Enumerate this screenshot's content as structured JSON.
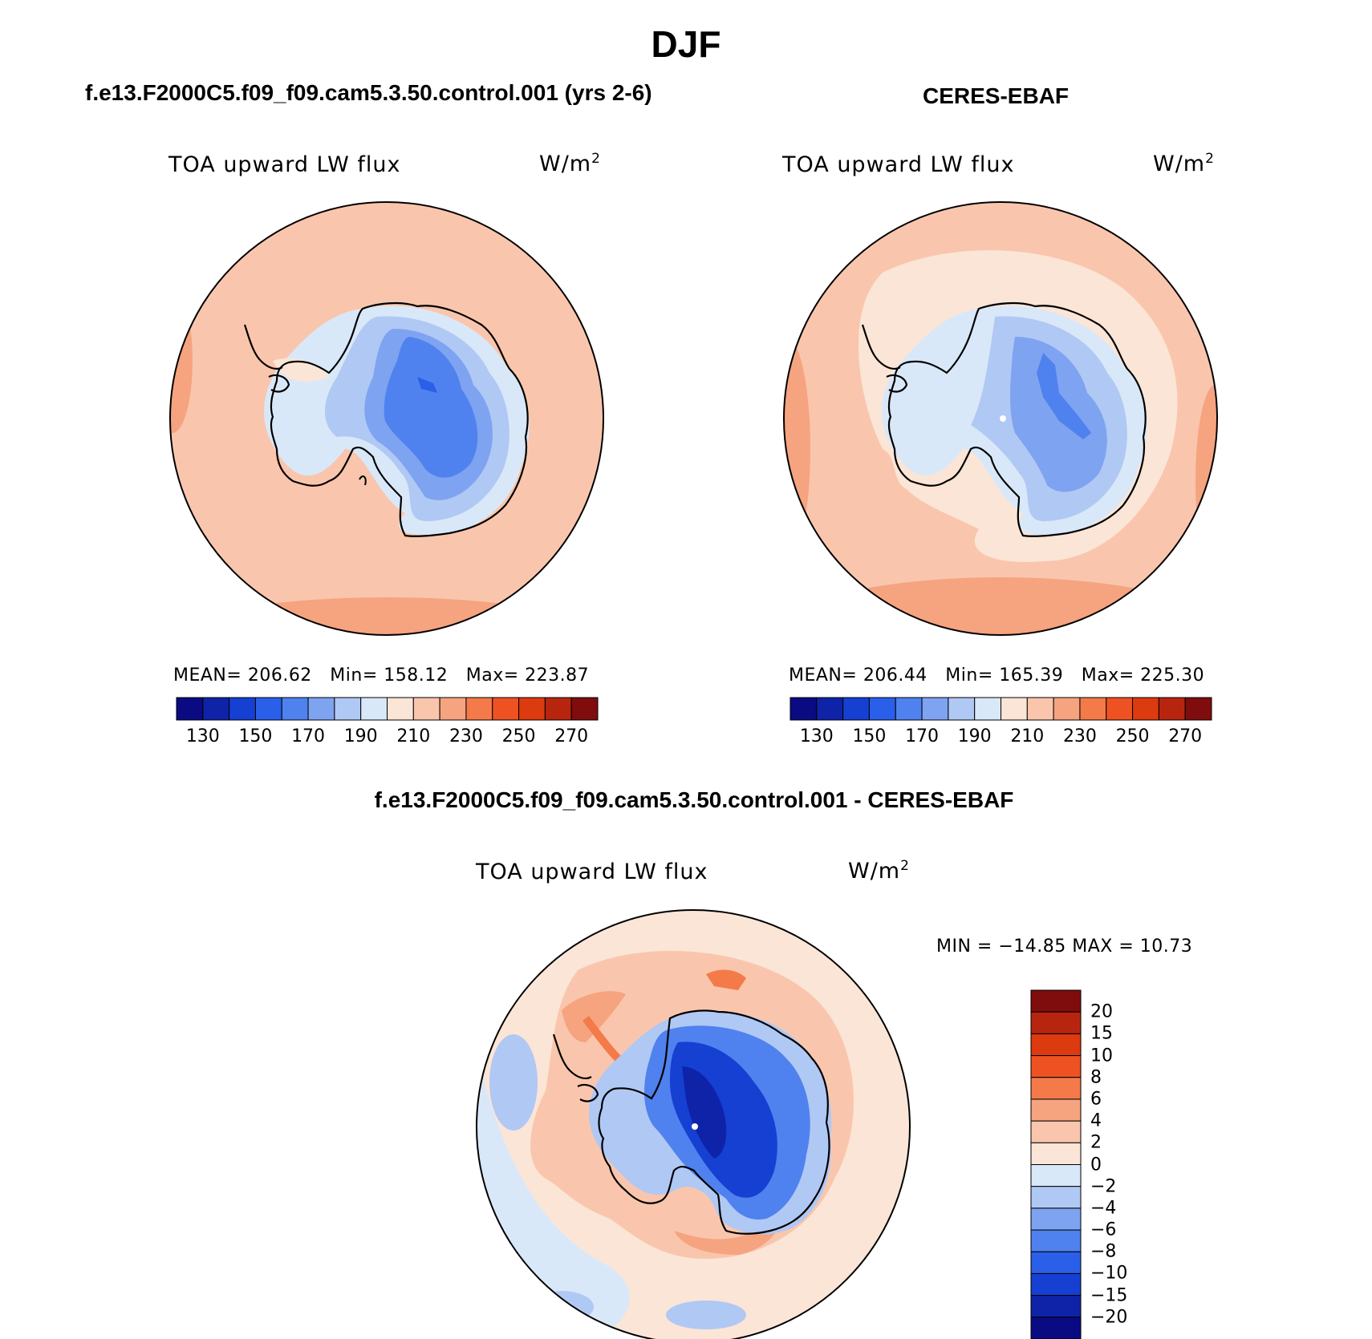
{
  "page_title": "DJF",
  "panels": [
    {
      "id": "model",
      "title": "f.e13.F2000C5.f09_f09.cam5.3.50.control.001 (yrs 2-6)",
      "variable": "TOA upward LW flux",
      "units_base": "W/m",
      "units_exp": "2",
      "stats": {
        "mean_label": "MEAN=",
        "mean": "206.62",
        "min_label": "Min=",
        "min": "158.12",
        "max_label": "Max=",
        "max": "223.87"
      }
    },
    {
      "id": "obs",
      "title": "CERES-EBAF",
      "variable": "TOA upward LW flux",
      "units_base": "W/m",
      "units_exp": "2",
      "stats": {
        "mean_label": "MEAN=",
        "mean": "206.44",
        "min_label": "Min=",
        "min": "165.39",
        "max_label": "Max=",
        "max": "225.30"
      }
    },
    {
      "id": "diff",
      "title": "f.e13.F2000C5.f09_f09.cam5.3.50.control.001 - CERES-EBAF",
      "variable": "TOA upward LW flux",
      "units_base": "W/m",
      "units_exp": "2",
      "stats_line": "MIN = −14.85 MAX =  10.73"
    }
  ],
  "abs_colorbar": {
    "colors": [
      "#0a0a82",
      "#0f23a8",
      "#1540d2",
      "#2a5fea",
      "#4f82ee",
      "#7ea3f0",
      "#b0c8f4",
      "#d9e8f8",
      "#fbe5d6",
      "#f9c6ad",
      "#f6a380",
      "#f47a4a",
      "#ee5222",
      "#dc3a0f",
      "#b8250f",
      "#7f0d0d"
    ],
    "tick_labels": [
      "130",
      "150",
      "170",
      "190",
      "210",
      "230",
      "250",
      "270"
    ]
  },
  "diff_colorbar": {
    "colors": [
      "#0a0a82",
      "#0f23a8",
      "#1540d2",
      "#2a5fea",
      "#4f82ee",
      "#7ea3f0",
      "#b0c8f4",
      "#d9e8f8",
      "#fbe5d6",
      "#f9c6ad",
      "#f6a380",
      "#f47a4a",
      "#ee5222",
      "#dc3a0f",
      "#b8250f",
      "#7f0d0d"
    ],
    "tick_labels": [
      "−20",
      "−15",
      "−10",
      "−8",
      "−6",
      "−4",
      "−2",
      "0",
      "2",
      "4",
      "6",
      "8",
      "10",
      "15",
      "20"
    ]
  }
}
